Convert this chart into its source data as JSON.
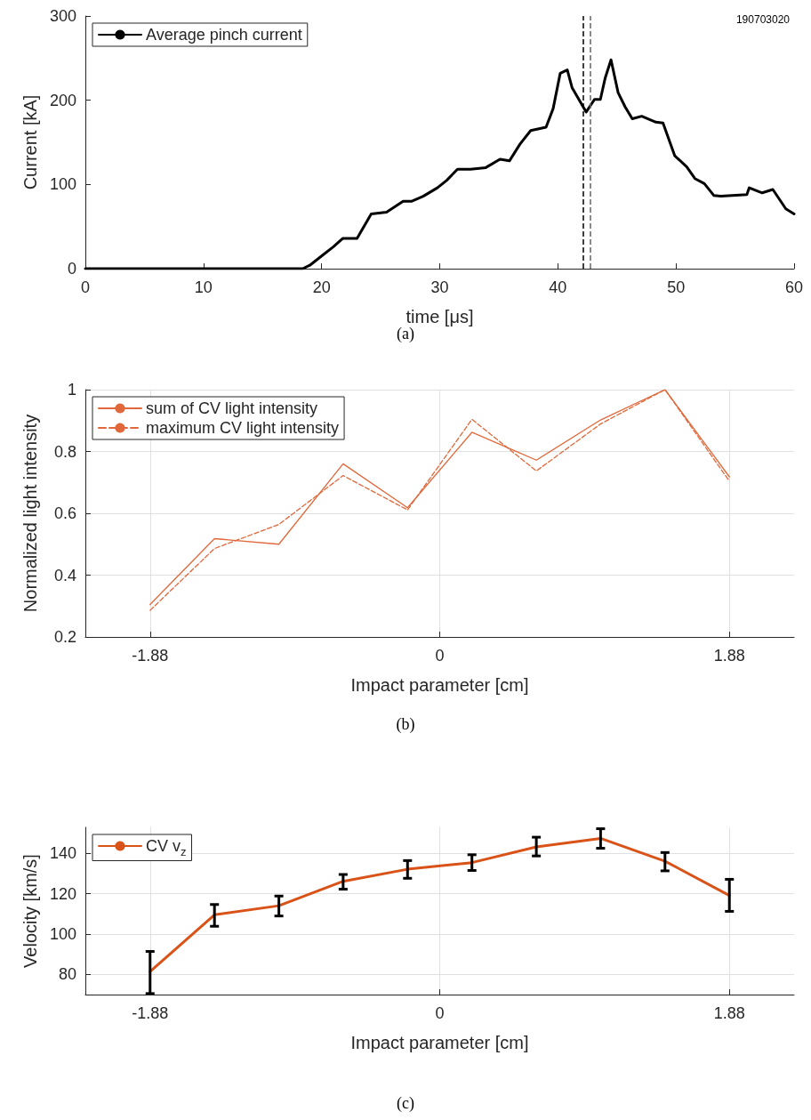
{
  "chart_data": [
    {
      "type": "line",
      "xlabel": "time [μs]",
      "ylabel": "Current [kA]",
      "annotations": [
        "190703020",
        "(a)"
      ],
      "x": [
        0,
        18.4,
        19.0,
        20.0,
        21.0,
        21.8,
        23.0,
        23.5,
        24.2,
        25.5,
        26.9,
        27.6,
        28.6,
        29.8,
        30.6,
        31.5,
        32.6,
        33.9,
        35.1,
        35.9,
        36.8,
        37.7,
        39.0,
        39.6,
        40.2,
        40.8,
        41.2,
        42.4,
        43.1,
        43.6,
        44.0,
        44.5,
        45.1,
        45.7,
        46.3,
        47.1,
        48.3,
        48.9,
        49.9,
        50.9,
        51.6,
        52.4,
        53.2,
        53.8,
        56.0,
        56.2,
        57.3,
        58.2,
        59.3,
        60.0
      ],
      "series": [
        {
          "name": "Average pinch current",
          "color": "#000000",
          "values": [
            0,
            0,
            4,
            15,
            26,
            36,
            36,
            48,
            65,
            67,
            80,
            80,
            86,
            96,
            105,
            118,
            118,
            120,
            130,
            128,
            148,
            164,
            168,
            190,
            232,
            236,
            215,
            186,
            201,
            201,
            226,
            248,
            209,
            192,
            178,
            181,
            174,
            173,
            134,
            121,
            107,
            101,
            87,
            86,
            88,
            96,
            90,
            94,
            71,
            65
          ]
        }
      ],
      "xlim": [
        0,
        60
      ],
      "xticks": [
        0,
        10,
        20,
        30,
        40,
        50,
        60
      ],
      "ylim": [
        0,
        300
      ],
      "yticks": [
        0,
        100,
        200,
        300
      ],
      "ref_lines": [
        {
          "axis": "x",
          "value": 42.15,
          "color": "#000000",
          "line_style": "dashed"
        },
        {
          "axis": "x",
          "value": 42.74,
          "color": "#666666",
          "line_style": "dashed"
        }
      ],
      "grid": false,
      "legend": "top left"
    },
    {
      "type": "line",
      "xlabel": "Impact parameter [cm]",
      "ylabel": "Normalized light intensity",
      "annotations": [
        "(b)"
      ],
      "x": [
        -1.88,
        -1.462,
        -1.044,
        -0.627,
        -0.209,
        0.209,
        0.627,
        1.044,
        1.462,
        1.88
      ],
      "series": [
        {
          "name": "sum of CV light intensity",
          "color": "#e0683a",
          "line_style": "solid",
          "values": [
            0.305,
            0.518,
            0.5,
            0.76,
            0.618,
            0.862,
            0.772,
            0.902,
            1.0,
            0.718
          ]
        },
        {
          "name": "maximum CV light intensity",
          "color": "#e0683a",
          "line_style": "dashed",
          "values": [
            0.286,
            0.486,
            0.564,
            0.722,
            0.611,
            0.904,
            0.737,
            0.889,
            1.0,
            0.704
          ]
        }
      ],
      "xlim": [
        -2.3,
        2.3
      ],
      "xticks": [
        -1.88,
        0,
        1.88
      ],
      "ylim": [
        0.2,
        1
      ],
      "yticks": [
        0.2,
        0.4,
        0.6,
        0.8,
        1
      ],
      "grid": true,
      "legend": "top left"
    },
    {
      "type": "line",
      "xlabel": "Impact parameter [cm]",
      "ylabel": "Velocity [km/s]",
      "annotations": [
        "(c)"
      ],
      "x": [
        -1.88,
        -1.462,
        -1.044,
        -0.627,
        -0.209,
        0.209,
        0.627,
        1.044,
        1.462,
        1.88
      ],
      "series": [
        {
          "name": "CV v$_{z}$",
          "color": "#d95319",
          "values": [
            81.4,
            109.6,
            114.1,
            126.2,
            132.2,
            135.5,
            143.3,
            147.5,
            136.2,
            119.2
          ],
          "errors": [
            [
              70.5,
              91.4
            ],
            [
              103.9,
              114.7
            ],
            [
              109.0,
              118.9
            ],
            [
              122.3,
              129.6
            ],
            [
              127.7,
              136.5
            ],
            [
              131.6,
              139.4
            ],
            [
              138.8,
              148.1
            ],
            [
              142.6,
              152.3
            ],
            [
              131.4,
              140.5
            ],
            [
              111.3,
              127.2
            ]
          ]
        }
      ],
      "xlim": [
        -2.3,
        2.3
      ],
      "xticks": [
        -1.88,
        0,
        1.88
      ],
      "ylim": [
        70,
        153
      ],
      "yticks": [
        80,
        100,
        120,
        140
      ],
      "grid": true,
      "legend": "top left"
    }
  ]
}
